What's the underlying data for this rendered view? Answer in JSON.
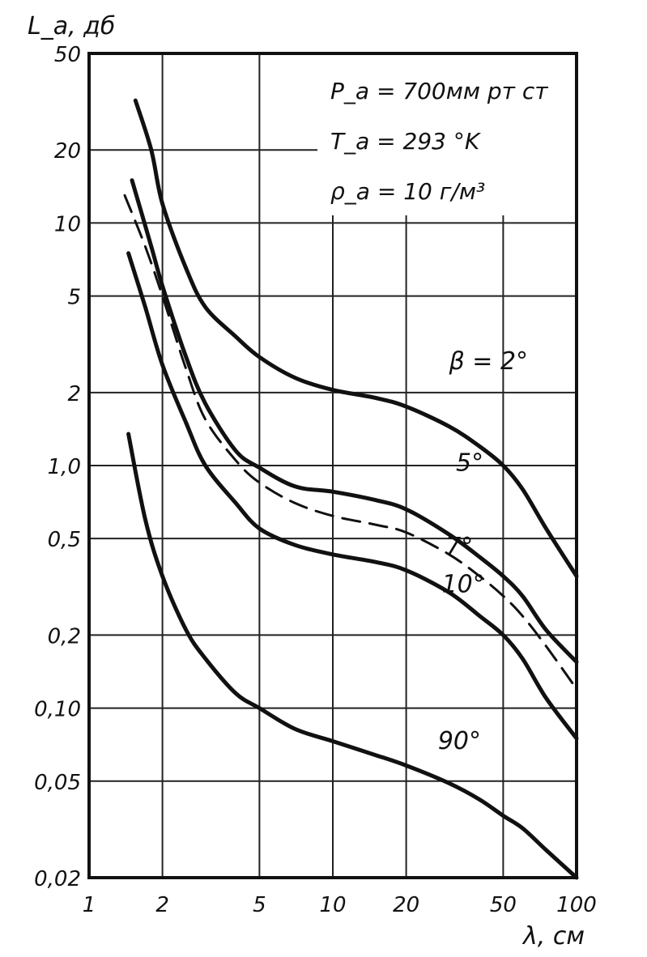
{
  "chart_data": {
    "type": "line",
    "x_scale": "log",
    "y_scale": "log",
    "xlim": [
      1,
      100
    ],
    "ylim": [
      0.02,
      50
    ],
    "xlabel": "λ, см",
    "ylabel": "L_a, дб",
    "x_ticks": [
      {
        "value": 1,
        "label": "1"
      },
      {
        "value": 2,
        "label": "2"
      },
      {
        "value": 5,
        "label": "5"
      },
      {
        "value": 10,
        "label": "10"
      },
      {
        "value": 20,
        "label": "20"
      },
      {
        "value": 50,
        "label": "50"
      },
      {
        "value": 100,
        "label": "100"
      }
    ],
    "y_ticks": [
      {
        "value": 50,
        "label": "50"
      },
      {
        "value": 20,
        "label": "20"
      },
      {
        "value": 10,
        "label": "10"
      },
      {
        "value": 5,
        "label": "5"
      },
      {
        "value": 2,
        "label": "2"
      },
      {
        "value": 1,
        "label": "1,0"
      },
      {
        "value": 0.5,
        "label": "0,5"
      },
      {
        "value": 0.2,
        "label": "0,2"
      },
      {
        "value": 0.1,
        "label": "0,10"
      },
      {
        "value": 0.05,
        "label": "0,05"
      },
      {
        "value": 0.02,
        "label": "0,02"
      }
    ],
    "grid": true,
    "annotation_lines": [
      "P_a = 700мм рт ст",
      "T_a = 293 °K",
      "ρ_a = 10 г/м³"
    ],
    "series": [
      {
        "name": "β = 2°",
        "style": "solid",
        "points": [
          [
            1.55,
            32
          ],
          [
            1.8,
            20
          ],
          [
            2.0,
            12
          ],
          [
            2.5,
            6.5
          ],
          [
            3.0,
            4.5
          ],
          [
            4.0,
            3.4
          ],
          [
            5.0,
            2.8
          ],
          [
            7.0,
            2.3
          ],
          [
            10.0,
            2.05
          ],
          [
            15.0,
            1.9
          ],
          [
            20.0,
            1.75
          ],
          [
            30.0,
            1.45
          ],
          [
            40.0,
            1.2
          ],
          [
            50.0,
            1.0
          ],
          [
            60.0,
            0.8
          ],
          [
            75.0,
            0.55
          ],
          [
            100.0,
            0.35
          ]
        ]
      },
      {
        "name": "5°",
        "style": "solid",
        "points": [
          [
            1.5,
            15
          ],
          [
            1.8,
            8
          ],
          [
            2.0,
            5.5
          ],
          [
            2.5,
            2.8
          ],
          [
            3.0,
            1.8
          ],
          [
            4.0,
            1.15
          ],
          [
            5.0,
            0.98
          ],
          [
            7.0,
            0.82
          ],
          [
            10.0,
            0.78
          ],
          [
            15.0,
            0.72
          ],
          [
            20.0,
            0.66
          ],
          [
            30.0,
            0.52
          ],
          [
            40.0,
            0.42
          ],
          [
            50.0,
            0.35
          ],
          [
            60.0,
            0.29
          ],
          [
            75.0,
            0.21
          ],
          [
            100.0,
            0.155
          ]
        ]
      },
      {
        "name": "7°",
        "style": "dashed",
        "points": [
          [
            1.4,
            13
          ],
          [
            1.7,
            8
          ],
          [
            2.0,
            5
          ],
          [
            2.5,
            2.5
          ],
          [
            3.0,
            1.55
          ],
          [
            4.0,
            1.05
          ],
          [
            5.0,
            0.85
          ],
          [
            7.0,
            0.7
          ],
          [
            10.0,
            0.62
          ],
          [
            15.0,
            0.57
          ],
          [
            20.0,
            0.53
          ],
          [
            30.0,
            0.43
          ],
          [
            40.0,
            0.35
          ],
          [
            50.0,
            0.29
          ],
          [
            60.0,
            0.24
          ],
          [
            75.0,
            0.18
          ],
          [
            100.0,
            0.12
          ]
        ]
      },
      {
        "name": "10°",
        "style": "solid",
        "points": [
          [
            1.45,
            7.5
          ],
          [
            1.7,
            4.5
          ],
          [
            2.0,
            2.6
          ],
          [
            2.5,
            1.5
          ],
          [
            3.0,
            1.0
          ],
          [
            4.0,
            0.7
          ],
          [
            5.0,
            0.55
          ],
          [
            7.0,
            0.47
          ],
          [
            10.0,
            0.43
          ],
          [
            15.0,
            0.4
          ],
          [
            20.0,
            0.37
          ],
          [
            30.0,
            0.3
          ],
          [
            40.0,
            0.24
          ],
          [
            50.0,
            0.2
          ],
          [
            60.0,
            0.16
          ],
          [
            75.0,
            0.11
          ],
          [
            100.0,
            0.075
          ]
        ]
      },
      {
        "name": "90°",
        "style": "solid",
        "points": [
          [
            1.45,
            1.35
          ],
          [
            1.7,
            0.6
          ],
          [
            2.0,
            0.35
          ],
          [
            2.5,
            0.21
          ],
          [
            3.0,
            0.16
          ],
          [
            4.0,
            0.115
          ],
          [
            5.0,
            0.1
          ],
          [
            7.0,
            0.082
          ],
          [
            10.0,
            0.073
          ],
          [
            15.0,
            0.064
          ],
          [
            20.0,
            0.058
          ],
          [
            30.0,
            0.049
          ],
          [
            40.0,
            0.042
          ],
          [
            50.0,
            0.036
          ],
          [
            60.0,
            0.032
          ],
          [
            75.0,
            0.026
          ],
          [
            100.0,
            0.02
          ]
        ]
      }
    ],
    "series_labels": [
      {
        "series": 0,
        "text": "β = 2°",
        "x": 30,
        "y": 2.5
      },
      {
        "series": 1,
        "text": "5°",
        "x": 32,
        "y": 0.95
      },
      {
        "series": 2,
        "text": "7°",
        "x": 29,
        "y": 0.43
      },
      {
        "series": 3,
        "text": "10°",
        "x": 28,
        "y": 0.3
      },
      {
        "series": 4,
        "text": "90°",
        "x": 27,
        "y": 0.068
      }
    ]
  }
}
